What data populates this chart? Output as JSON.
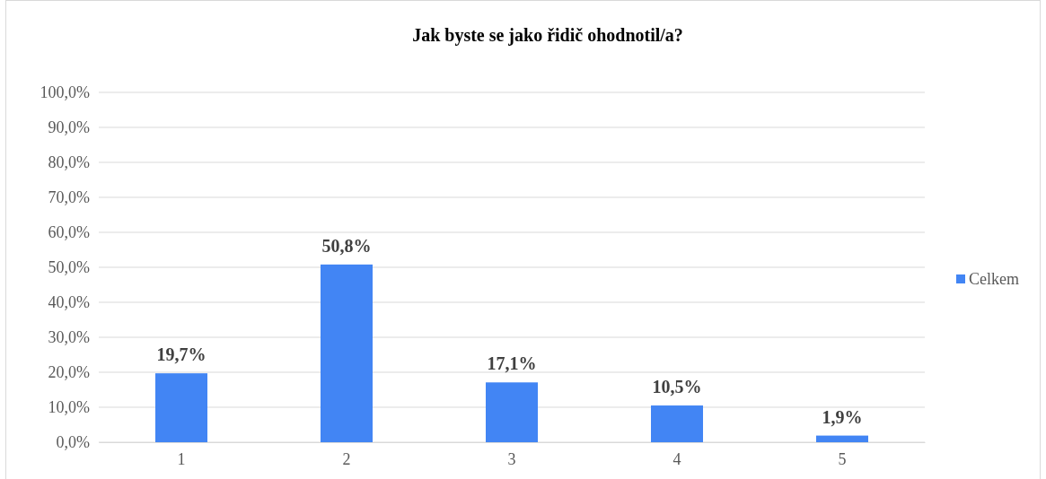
{
  "chart_data": {
    "type": "bar",
    "title": "Jak byste se jako řidič ohodnotil/a?",
    "categories": [
      "1",
      "2",
      "3",
      "4",
      "5"
    ],
    "series": [
      {
        "name": "Celkem",
        "color": "#4285f4",
        "values": [
          19.7,
          50.8,
          17.1,
          10.5,
          1.9
        ],
        "value_labels": [
          "19,7%",
          "50,8%",
          "17,1%",
          "10,5%",
          "1,9%"
        ]
      }
    ],
    "ylim": [
      0,
      100
    ],
    "yticks": [
      {
        "value": 0,
        "label": "0,0%"
      },
      {
        "value": 10,
        "label": "10,0%"
      },
      {
        "value": 20,
        "label": "20,0%"
      },
      {
        "value": 30,
        "label": "30,0%"
      },
      {
        "value": 40,
        "label": "40,0%"
      },
      {
        "value": 50,
        "label": "50,0%"
      },
      {
        "value": 60,
        "label": "60,0%"
      },
      {
        "value": 70,
        "label": "70,0%"
      },
      {
        "value": 80,
        "label": "80,0%"
      },
      {
        "value": 90,
        "label": "90,0%"
      },
      {
        "value": 100,
        "label": "100,0%"
      }
    ],
    "grid": "y",
    "legend": "right"
  }
}
